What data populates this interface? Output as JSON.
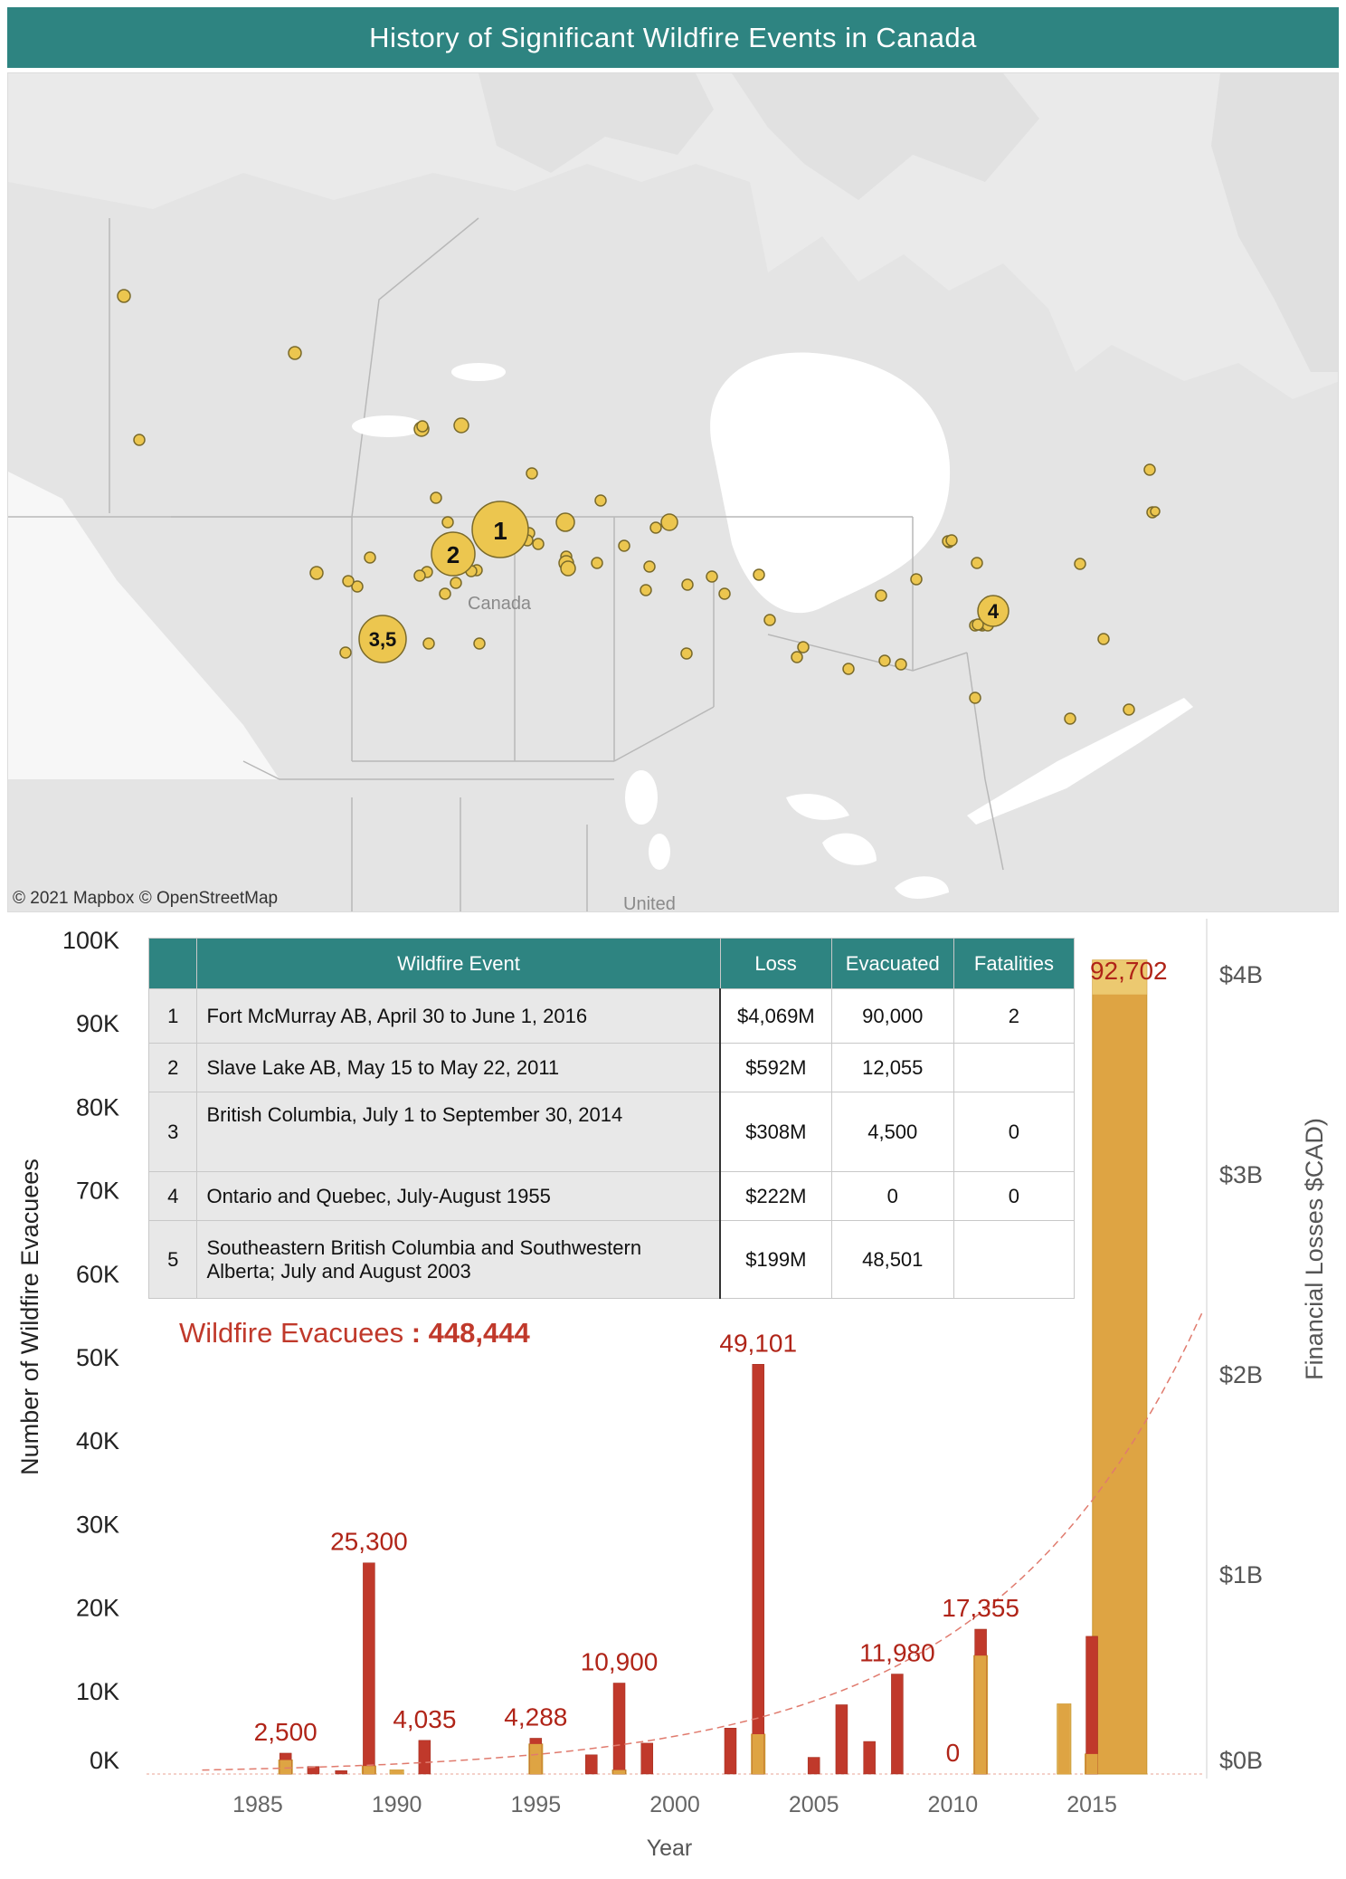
{
  "title": "History of Significant Wildfire Events in Canada",
  "map": {
    "credit": "© 2021 Mapbox © OpenStreetMap",
    "country_label": "Canada",
    "bottom_label": "United",
    "numbered_markers": [
      "1",
      "2",
      "3,5",
      "4"
    ],
    "marker_color": "#ecc64f"
  },
  "table": {
    "headers": [
      "",
      "Wildfire Event",
      "Loss",
      "Evacuated",
      "Fatalities"
    ],
    "rows": [
      {
        "num": "1",
        "event": "Fort McMurray AB, April 30 to June 1, 2016",
        "loss": "$4,069M",
        "evacuated": "90,000",
        "fatalities": "2"
      },
      {
        "num": "2",
        "event": "Slave Lake AB, May 15 to May 22, 2011",
        "loss": "$592M",
        "evacuated": "12,055",
        "fatalities": ""
      },
      {
        "num": "3",
        "event": "British Columbia, July 1 to September 30, 2014",
        "loss": "$308M",
        "evacuated": "4,500",
        "fatalities": "0"
      },
      {
        "num": "4",
        "event": "Ontario and Quebec, July-August 1955",
        "loss": "$222M",
        "evacuated": "0",
        "fatalities": "0"
      },
      {
        "num": "5",
        "event": "Southeastern British Columbia and Southwestern Alberta; July and August 2003",
        "loss": "$199M",
        "evacuated": "48,501",
        "fatalities": ""
      }
    ]
  },
  "total": {
    "label": "Wildfire Evacuees",
    "separator": " : ",
    "value": "448,444"
  },
  "chart_data": {
    "type": "bar",
    "xlabel": "Year",
    "ylabel": "Number of Wildfire Evacuees",
    "y2label": "Financial Losses $CAD)",
    "ylim": [
      0,
      100000
    ],
    "y2lim": [
      0,
      4000000000
    ],
    "xlim": [
      1981,
      2019
    ],
    "x_ticks": [
      1985,
      1990,
      1995,
      2000,
      2005,
      2010,
      2015
    ],
    "y_tick_labels": [
      "0K",
      "10K",
      "20K",
      "30K",
      "40K",
      "50K",
      "60K",
      "70K",
      "80K",
      "90K",
      "100K"
    ],
    "y2_tick_labels": [
      "$0B",
      "$1B",
      "$2B",
      "$3B",
      "$4B"
    ],
    "colors": {
      "evacuees": "#c0392b",
      "losses": "#dea443",
      "losses_light": "#ecc970",
      "trend": "#e07b6e",
      "labels": "#b02418"
    },
    "evacuees": [
      {
        "year": 1986,
        "value": 2500,
        "label": "2,500"
      },
      {
        "year": 1987,
        "value": 900
      },
      {
        "year": 1988,
        "value": 400
      },
      {
        "year": 1989,
        "value": 25300,
        "label": "25,300"
      },
      {
        "year": 1991,
        "value": 4035,
        "label": "4,035"
      },
      {
        "year": 1995,
        "value": 4288,
        "label": "4,288"
      },
      {
        "year": 1997,
        "value": 2300
      },
      {
        "year": 1998,
        "value": 10900,
        "label": "10,900"
      },
      {
        "year": 1999,
        "value": 3700
      },
      {
        "year": 2002,
        "value": 5500
      },
      {
        "year": 2003,
        "value": 49101,
        "label": "49,101"
      },
      {
        "year": 2005,
        "value": 2000
      },
      {
        "year": 2006,
        "value": 8300
      },
      {
        "year": 2007,
        "value": 3900
      },
      {
        "year": 2008,
        "value": 11980,
        "label": "11,980"
      },
      {
        "year": 2010,
        "value": 0,
        "label": "0"
      },
      {
        "year": 2011,
        "value": 17355,
        "label": "17,355"
      },
      {
        "year": 2015,
        "value": 16500
      }
    ],
    "losses": [
      {
        "year": 1986,
        "value": 70000000
      },
      {
        "year": 1989,
        "value": 40000000
      },
      {
        "year": 1990,
        "value": 20000000
      },
      {
        "year": 1995,
        "value": 150000000
      },
      {
        "year": 1998,
        "value": 20000000
      },
      {
        "year": 2003,
        "value": 199000000
      },
      {
        "year": 2011,
        "value": 592000000
      },
      {
        "year": 2014,
        "value": 350000000
      },
      {
        "year": 2015,
        "value": 100000000
      },
      {
        "year": 2016,
        "value": 4069000000,
        "label": "92,702"
      }
    ]
  }
}
